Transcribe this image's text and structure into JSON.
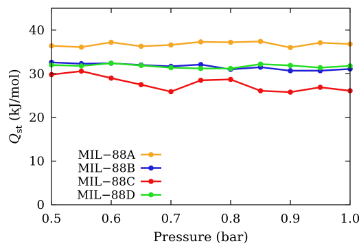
{
  "chart_data": {
    "type": "line",
    "xlabel": "Pressure (bar)",
    "ylabel": {
      "main": "Q",
      "subscript": "st",
      "unit": " (kJ/mol)"
    },
    "xlim": [
      0.5,
      1.0
    ],
    "ylim": [
      0,
      45
    ],
    "xticks": [
      0.5,
      0.6,
      0.7,
      0.8,
      0.9,
      1.0
    ],
    "xtick_labels": [
      "0.5",
      "0.6",
      "0.7",
      "0.8",
      "0.9",
      "1.0"
    ],
    "yticks": [
      0,
      10,
      20,
      30,
      40
    ],
    "ytick_labels": [
      "0",
      "10",
      "20",
      "30",
      "40"
    ],
    "grid": false,
    "legend_position": "bottom-left",
    "x": [
      0.5,
      0.55,
      0.6,
      0.65,
      0.7,
      0.75,
      0.8,
      0.85,
      0.9,
      0.95,
      1.0
    ],
    "series": [
      {
        "name": "MIL−88A",
        "color": "#f5a623",
        "values": [
          36.4,
          36.1,
          37.2,
          36.3,
          36.6,
          37.3,
          37.2,
          37.4,
          36.0,
          37.1,
          36.8
        ]
      },
      {
        "name": "MIL−88B",
        "color": "#1f1fd6",
        "values": [
          32.6,
          32.3,
          32.4,
          32.0,
          31.7,
          32.1,
          31.0,
          31.5,
          30.7,
          30.7,
          31.1
        ]
      },
      {
        "name": "MIL−88C",
        "color": "#ee1111",
        "values": [
          29.8,
          30.6,
          29.0,
          27.5,
          25.9,
          28.5,
          28.7,
          26.1,
          25.8,
          26.9,
          26.1
        ]
      },
      {
        "name": "MIL−88D",
        "color": "#22dd22",
        "values": [
          32.0,
          31.8,
          32.4,
          31.9,
          31.4,
          31.2,
          31.2,
          32.2,
          31.9,
          31.4,
          31.8
        ]
      }
    ]
  }
}
